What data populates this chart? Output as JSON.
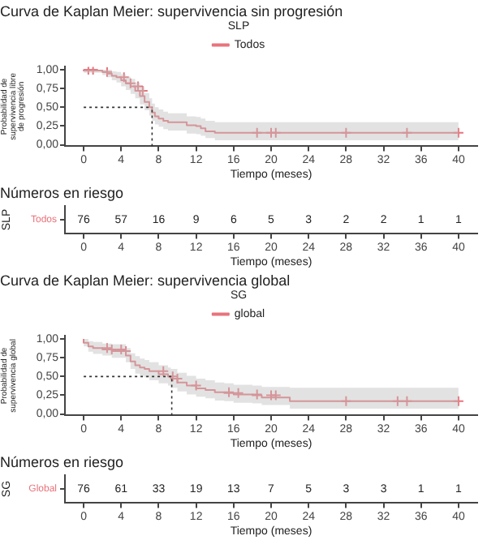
{
  "chart_data": [
    {
      "type": "step",
      "title": "Curva de Kaplan Meier: supervivencia sin progresión",
      "xlabel": "Tiempo (meses)",
      "ylabel": "Probabilidad de supervivencia libre de progresión",
      "legend_title": "SLP",
      "legend": "top",
      "grid": false,
      "marker": "none",
      "series": [
        {
          "name": "Todos",
          "color": "#e8737b",
          "x": [
            0,
            2,
            2.5,
            3,
            3.5,
            4,
            4.5,
            5,
            5.5,
            6,
            6.5,
            7,
            7.3,
            7.6,
            8,
            8.5,
            9,
            10,
            11,
            12,
            12.5,
            13,
            14,
            14.5,
            40
          ],
          "values": [
            1,
            0.99,
            0.97,
            0.95,
            0.92,
            0.9,
            0.86,
            0.82,
            0.78,
            0.72,
            0.65,
            0.57,
            0.5,
            0.43,
            0.38,
            0.35,
            0.32,
            0.3,
            0.3,
            0.26,
            0.25,
            0.22,
            0.18,
            0.16,
            0.16
          ],
          "lower": [
            1,
            0.96,
            0.93,
            0.9,
            0.86,
            0.83,
            0.78,
            0.73,
            0.68,
            0.62,
            0.54,
            0.46,
            0.39,
            0.32,
            0.27,
            0.24,
            0.21,
            0.19,
            0.19,
            0.15,
            0.14,
            0.12,
            0.09,
            0.06,
            0.06
          ],
          "upper": [
            1,
            1,
            1,
            1,
            0.98,
            0.97,
            0.94,
            0.91,
            0.88,
            0.83,
            0.77,
            0.69,
            0.62,
            0.55,
            0.5,
            0.47,
            0.44,
            0.42,
            0.42,
            0.38,
            0.37,
            0.35,
            0.32,
            0.3,
            0.3
          ]
        },
        {
          "type": "scatter",
          "marker": "cross",
          "color": "#e8737b",
          "x": [
            0.5,
            1,
            2.5,
            4.3,
            5,
            5.8,
            6.3,
            18.5,
            20,
            20.5,
            28,
            34.5,
            40
          ],
          "values": [
            1,
            1,
            0.97,
            0.9,
            0.82,
            0.78,
            0.72,
            0.16,
            0.16,
            0.16,
            0.16,
            0.16,
            0.16
          ]
        }
      ],
      "xlim": [
        -2,
        42
      ],
      "xticks": [
        0,
        4,
        8,
        12,
        16,
        20,
        24,
        28,
        32,
        36,
        40
      ],
      "ylim": [
        -0.02,
        1.04
      ],
      "yticks": [
        {
          "value": 0,
          "label": "0,00"
        },
        {
          "value": 0.25,
          "label": "0,25"
        },
        {
          "value": 0.5,
          "label": "0,50"
        },
        {
          "value": 0.75,
          "label": "0,75"
        },
        {
          "value": 1,
          "label": "1,00"
        }
      ],
      "ref_lines": [
        {
          "axis": "y",
          "value": 0.5,
          "color": "#333333",
          "line_style": "dotted"
        },
        {
          "axis": "x",
          "value": 7.3,
          "color": "#333333",
          "line_style": "dotted"
        }
      ]
    },
    {
      "type": "heatmap",
      "title": "Números en riesgo",
      "xlabel": "Tiempo (meses)",
      "ylabel": "SLP",
      "data_labels": true,
      "categories": [
        "0",
        "4",
        "8",
        "12",
        "16",
        "20",
        "24",
        "28",
        "32",
        "36",
        "40"
      ],
      "y_categories": [
        "Todos"
      ],
      "cells": [
        [
          76,
          57,
          16,
          9,
          6,
          5,
          3,
          2,
          2,
          1,
          1
        ]
      ]
    },
    {
      "type": "step",
      "title": "Curva de Kaplan Meier: supervivencia global",
      "xlabel": "Tiempo (meses)",
      "ylabel": "Probabilidad de supervivencia global",
      "legend_title": "SG",
      "legend": "top",
      "grid": false,
      "marker": "none",
      "series": [
        {
          "name": "global",
          "color": "#e8737b",
          "x": [
            0,
            0.5,
            1,
            2,
            3,
            4.5,
            5,
            5.5,
            6,
            6.5,
            7,
            8,
            9,
            9.3,
            10,
            11,
            12,
            13,
            14,
            15,
            16,
            18,
            19,
            22,
            24,
            40
          ],
          "values": [
            1,
            0.95,
            0.9,
            0.88,
            0.86,
            0.84,
            0.78,
            0.7,
            0.65,
            0.62,
            0.6,
            0.57,
            0.53,
            0.5,
            0.47,
            0.42,
            0.38,
            0.34,
            0.32,
            0.29,
            0.28,
            0.26,
            0.25,
            0.22,
            0.17,
            0.17
          ],
          "lower": [
            1,
            0.9,
            0.83,
            0.8,
            0.78,
            0.75,
            0.69,
            0.6,
            0.54,
            0.51,
            0.49,
            0.45,
            0.41,
            0.38,
            0.35,
            0.3,
            0.26,
            0.23,
            0.21,
            0.18,
            0.17,
            0.15,
            0.14,
            0.12,
            0.07,
            0.07
          ],
          "upper": [
            1,
            1,
            0.97,
            0.96,
            0.94,
            0.93,
            0.88,
            0.81,
            0.77,
            0.74,
            0.72,
            0.69,
            0.65,
            0.62,
            0.6,
            0.55,
            0.51,
            0.47,
            0.45,
            0.42,
            0.41,
            0.39,
            0.38,
            0.36,
            0.35,
            0.35
          ]
        },
        {
          "type": "scatter",
          "marker": "cross",
          "color": "#e8737b",
          "x": [
            2.5,
            3,
            4,
            4.5,
            8.5,
            9.5,
            10,
            12,
            15.5,
            16.5,
            18.5,
            20,
            20.5,
            28,
            33.5,
            34.5,
            40
          ],
          "values": [
            0.88,
            0.86,
            0.86,
            0.84,
            0.57,
            0.5,
            0.47,
            0.38,
            0.29,
            0.28,
            0.26,
            0.25,
            0.25,
            0.17,
            0.17,
            0.17,
            0.17
          ]
        }
      ],
      "xlim": [
        -2,
        42
      ],
      "xticks": [
        0,
        4,
        8,
        12,
        16,
        20,
        24,
        28,
        32,
        36,
        40
      ],
      "ylim": [
        -0.02,
        1.04
      ],
      "yticks": [
        {
          "value": 0,
          "label": "0,00"
        },
        {
          "value": 0.25,
          "label": "0,25"
        },
        {
          "value": 0.5,
          "label": "0,50"
        },
        {
          "value": 0.75,
          "label": "0,75"
        },
        {
          "value": 1,
          "label": "1,00"
        }
      ],
      "ref_lines": [
        {
          "axis": "y",
          "value": 0.5,
          "color": "#333333",
          "line_style": "dotted"
        },
        {
          "axis": "x",
          "value": 9.4,
          "color": "#333333",
          "line_style": "dotted"
        }
      ]
    },
    {
      "type": "heatmap",
      "title": "Números en riesgo",
      "xlabel": "Tiempo (meses)",
      "ylabel": "SG",
      "data_labels": true,
      "categories": [
        "0",
        "4",
        "8",
        "12",
        "16",
        "20",
        "24",
        "28",
        "32",
        "36",
        "40"
      ],
      "y_categories": [
        "Global"
      ],
      "cells": [
        [
          76,
          61,
          33,
          19,
          13,
          7,
          5,
          3,
          3,
          1,
          1
        ]
      ]
    }
  ]
}
